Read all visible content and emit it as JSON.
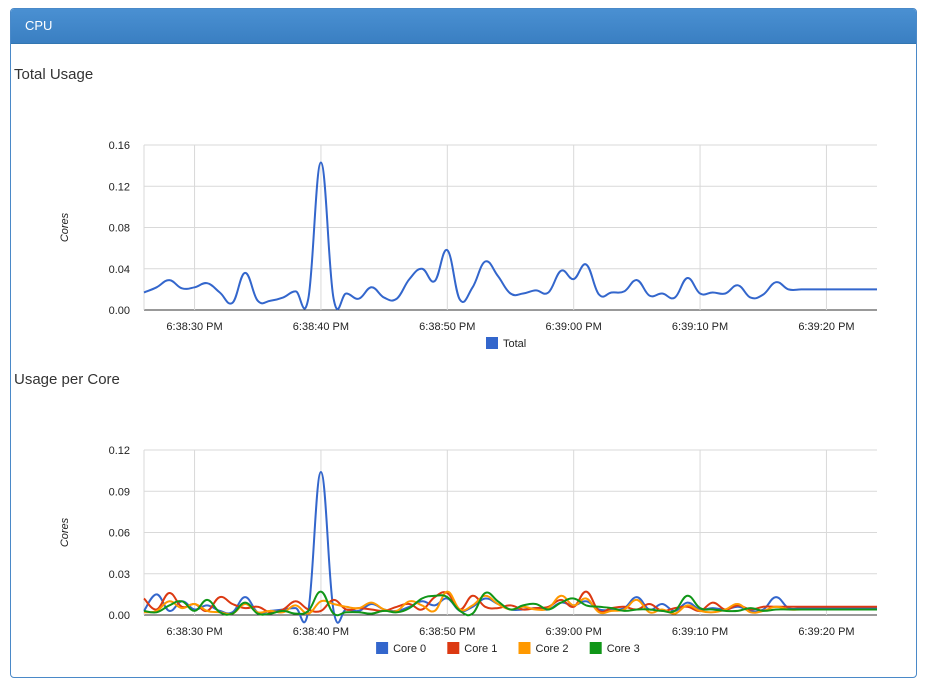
{
  "panel": {
    "title": "CPU"
  },
  "chart_data": [
    {
      "type": "line",
      "title": "Total Usage",
      "xlabel": "",
      "ylabel": "Cores",
      "ylim": [
        0,
        0.16
      ],
      "yticks": [
        "0.00",
        "0.04",
        "0.08",
        "0.12",
        "0.16"
      ],
      "xlim": [
        0,
        58
      ],
      "xticks": [
        {
          "t": 4,
          "label": "6:38:30 PM"
        },
        {
          "t": 14,
          "label": "6:38:40 PM"
        },
        {
          "t": 24,
          "label": "6:38:50 PM"
        },
        {
          "t": 34,
          "label": "6:39:00 PM"
        },
        {
          "t": 44,
          "label": "6:39:10 PM"
        },
        {
          "t": 54,
          "label": "6:39:20 PM"
        }
      ],
      "grid": true,
      "legend": "bottom",
      "series": [
        {
          "name": "Total",
          "color": "#3366cc",
          "x": [
            0,
            1,
            2,
            3,
            4,
            5,
            6,
            7,
            8,
            9,
            10,
            11,
            12,
            13,
            14,
            15,
            16,
            17,
            18,
            19,
            20,
            21,
            22,
            23,
            24,
            25,
            26,
            27,
            28,
            29,
            30,
            31,
            32,
            33,
            34,
            35,
            36,
            37,
            38,
            39,
            40,
            41,
            42,
            43,
            44,
            45,
            46,
            47,
            48,
            49,
            50,
            51,
            52,
            53,
            54,
            55,
            56,
            57,
            58
          ],
          "values": [
            0.017,
            0.022,
            0.029,
            0.021,
            0.022,
            0.026,
            0.017,
            0.007,
            0.036,
            0.009,
            0.009,
            0.012,
            0.018,
            0.011,
            0.143,
            0.011,
            0.016,
            0.011,
            0.022,
            0.012,
            0.011,
            0.03,
            0.04,
            0.028,
            0.058,
            0.01,
            0.022,
            0.047,
            0.033,
            0.016,
            0.016,
            0.019,
            0.017,
            0.038,
            0.03,
            0.044,
            0.015,
            0.017,
            0.018,
            0.029,
            0.014,
            0.016,
            0.012,
            0.031,
            0.016,
            0.017,
            0.016,
            0.024,
            0.012,
            0.015,
            0.027,
            0.02,
            0.02,
            0.02,
            0.02,
            0.02,
            0.02,
            0.02,
            0.02
          ]
        }
      ]
    },
    {
      "type": "line",
      "title": "Usage per Core",
      "xlabel": "",
      "ylabel": "Cores",
      "ylim": [
        0,
        0.12
      ],
      "yticks": [
        "0.00",
        "0.03",
        "0.06",
        "0.09",
        "0.12"
      ],
      "xlim": [
        0,
        58
      ],
      "xticks": [
        {
          "t": 4,
          "label": "6:38:30 PM"
        },
        {
          "t": 14,
          "label": "6:38:40 PM"
        },
        {
          "t": 24,
          "label": "6:38:50 PM"
        },
        {
          "t": 34,
          "label": "6:39:00 PM"
        },
        {
          "t": 44,
          "label": "6:39:10 PM"
        },
        {
          "t": 54,
          "label": "6:39:20 PM"
        }
      ],
      "grid": true,
      "legend": "bottom",
      "series": [
        {
          "name": "Core 0",
          "color": "#3366cc",
          "values": [
            0.003,
            0.015,
            0.003,
            0.01,
            0.004,
            0.007,
            0.003,
            0.002,
            0.013,
            0.002,
            0.003,
            0.004,
            0.005,
            0.003,
            0.104,
            0.003,
            0.004,
            0.003,
            0.008,
            0.004,
            0.003,
            0.006,
            0.01,
            0.007,
            0.012,
            0.003,
            0.006,
            0.012,
            0.008,
            0.004,
            0.004,
            0.005,
            0.004,
            0.009,
            0.007,
            0.01,
            0.004,
            0.004,
            0.005,
            0.013,
            0.004,
            0.008,
            0.003,
            0.009,
            0.004,
            0.005,
            0.004,
            0.006,
            0.003,
            0.004,
            0.013,
            0.005,
            0.005,
            0.005,
            0.005,
            0.005,
            0.005,
            0.005,
            0.005
          ]
        },
        {
          "name": "Core 1",
          "color": "#dc3912",
          "values": [
            0.012,
            0.004,
            0.016,
            0.006,
            0.008,
            0.003,
            0.013,
            0.008,
            0.005,
            0.006,
            0.002,
            0.004,
            0.01,
            0.004,
            0.003,
            0.011,
            0.004,
            0.005,
            0.004,
            0.003,
            0.006,
            0.008,
            0.004,
            0.013,
            0.016,
            0.004,
            0.014,
            0.006,
            0.005,
            0.007,
            0.004,
            0.005,
            0.006,
            0.011,
            0.006,
            0.017,
            0.003,
            0.005,
            0.006,
            0.004,
            0.008,
            0.003,
            0.005,
            0.006,
            0.003,
            0.009,
            0.004,
            0.007,
            0.004,
            0.006,
            0.006,
            0.006,
            0.006,
            0.006,
            0.006,
            0.006,
            0.006,
            0.006,
            0.006
          ]
        },
        {
          "name": "Core 2",
          "color": "#ff9900",
          "values": [
            0.002,
            0.003,
            0.01,
            0.005,
            0.008,
            0.003,
            0.002,
            0.001,
            0.008,
            0.002,
            0.003,
            0.002,
            0.007,
            0.001,
            0.01,
            0.008,
            0.006,
            0.005,
            0.009,
            0.004,
            0.003,
            0.01,
            0.007,
            0.003,
            0.017,
            0.004,
            0.007,
            0.014,
            0.008,
            0.004,
            0.006,
            0.004,
            0.005,
            0.014,
            0.007,
            0.012,
            0.002,
            0.003,
            0.004,
            0.011,
            0.002,
            0.004,
            0.001,
            0.007,
            0.003,
            0.002,
            0.004,
            0.008,
            0.002,
            0.003,
            0.006,
            0.004,
            0.004,
            0.004,
            0.004,
            0.004,
            0.004,
            0.004,
            0.004
          ]
        },
        {
          "name": "Core 3",
          "color": "#109618",
          "values": [
            0.003,
            0.002,
            0.007,
            0.01,
            0.003,
            0.011,
            0.002,
            0.001,
            0.009,
            0.001,
            0.001,
            0.003,
            0.001,
            0.003,
            0.017,
            0.001,
            0.002,
            0.002,
            0.001,
            0.003,
            0.002,
            0.005,
            0.012,
            0.014,
            0.013,
            0.003,
            0.001,
            0.016,
            0.01,
            0.004,
            0.007,
            0.008,
            0.004,
            0.009,
            0.012,
            0.007,
            0.006,
            0.005,
            0.003,
            0.004,
            0.004,
            0.003,
            0.003,
            0.014,
            0.005,
            0.004,
            0.003,
            0.003,
            0.005,
            0.003,
            0.004,
            0.004,
            0.004,
            0.004,
            0.004,
            0.004,
            0.004,
            0.004,
            0.004
          ]
        }
      ]
    }
  ]
}
